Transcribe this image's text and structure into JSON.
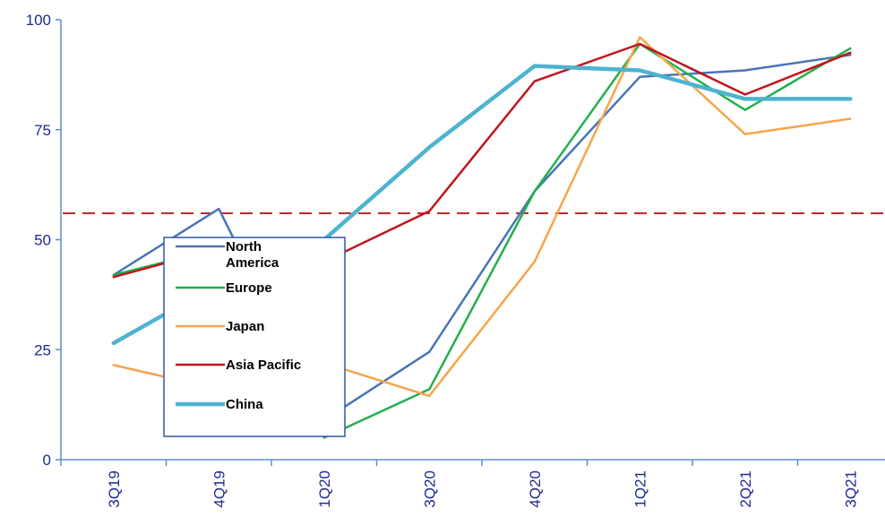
{
  "chart_data": {
    "type": "line",
    "title": "",
    "xlabel": "",
    "ylabel": "",
    "categories": [
      "3Q19",
      "4Q19",
      "1Q20",
      "3Q20",
      "4Q20",
      "1Q21",
      "2Q21",
      "3Q21"
    ],
    "ylim": [
      0,
      100
    ],
    "yticks": [
      0,
      25,
      50,
      75,
      100
    ],
    "grid": false,
    "reference_line": {
      "value": 56,
      "style": "dashed",
      "color": "#c0282d"
    },
    "legend": {
      "placement": "left-middle"
    },
    "series": [
      {
        "name": "North America",
        "color": "#4a74b8",
        "width": 2.5,
        "values": [
          42,
          57,
          9,
          24.5,
          61,
          87,
          88.5,
          92
        ]
      },
      {
        "name": "Europe",
        "color": "#22b04b",
        "width": 2.5,
        "values": [
          42,
          48,
          5,
          16,
          61,
          94.5,
          79.5,
          93.5
        ]
      },
      {
        "name": "Japan",
        "color": "#f7a54a",
        "width": 2.5,
        "values": [
          21.5,
          16,
          22,
          14.5,
          45,
          96,
          74,
          77.5
        ]
      },
      {
        "name": "Asia Pacific",
        "color": "#c0161c",
        "width": 2.5,
        "values": [
          41.5,
          48,
          45,
          56.5,
          86,
          94.5,
          83,
          92.5
        ]
      },
      {
        "name": "China",
        "color": "#4db3cf",
        "width": 4.5,
        "values": [
          26.5,
          40,
          50,
          71,
          89.5,
          88.5,
          82,
          82
        ]
      }
    ]
  }
}
